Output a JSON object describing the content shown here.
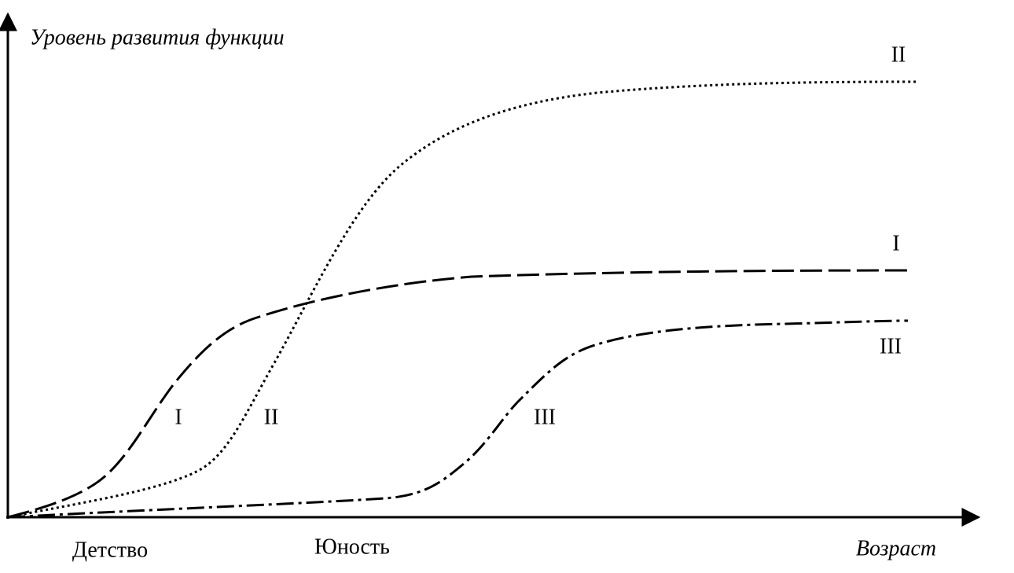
{
  "axes": {
    "y_label": "Уровень развития функции",
    "x_label": "Возраст",
    "x_marks": [
      "Детство",
      "Юность"
    ]
  },
  "curves": [
    {
      "label": "I"
    },
    {
      "label": "II"
    },
    {
      "label": "III"
    }
  ]
}
